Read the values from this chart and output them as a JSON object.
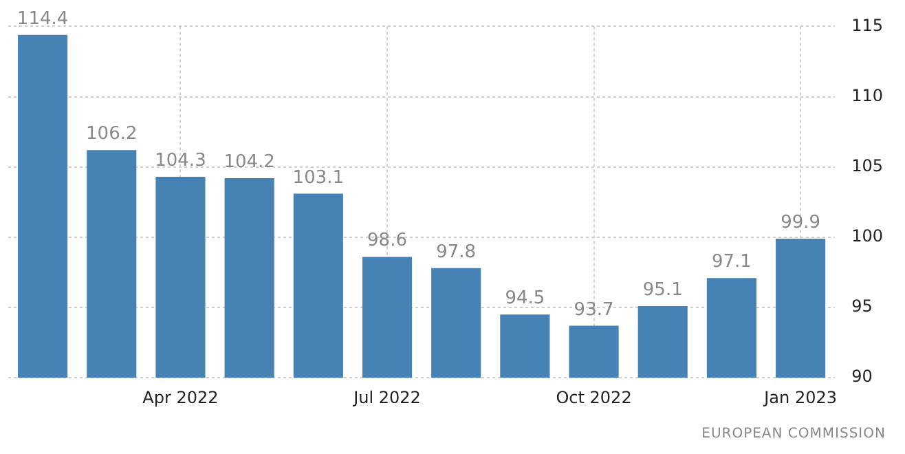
{
  "chart_data": {
    "type": "bar",
    "categories": [
      null,
      null,
      "Apr 2022",
      null,
      null,
      "Jul 2022",
      null,
      null,
      "Oct 2022",
      null,
      null,
      "Jan 2023"
    ],
    "values": [
      114.4,
      106.2,
      104.3,
      104.2,
      103.1,
      98.6,
      97.8,
      94.5,
      93.7,
      95.1,
      97.1,
      99.9
    ],
    "color": "#4682b4",
    "ylim": [
      90,
      115
    ],
    "yticks": [
      90,
      95,
      100,
      105,
      110,
      115
    ],
    "grid": true,
    "data_labels": true,
    "annotations": [
      "EUROPEAN COMMISSION"
    ]
  }
}
